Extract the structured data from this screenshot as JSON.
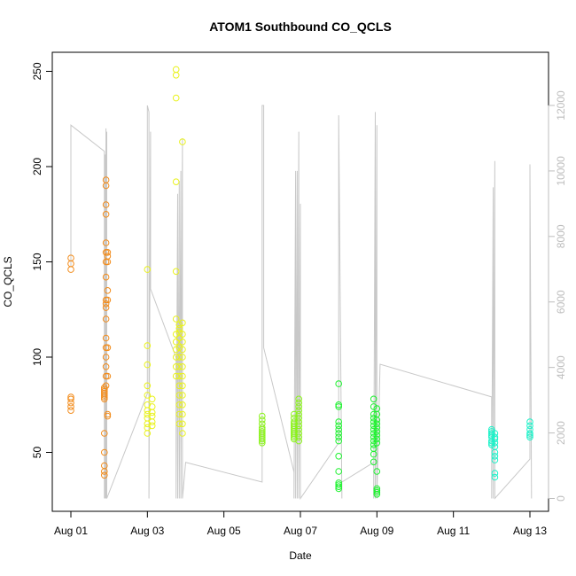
{
  "chart_data": {
    "type": "scatter",
    "title": "ATOM1 Southbound CO_QCLS",
    "xlabel": "Date",
    "ylabel": "CO_QCLS",
    "xlim": [
      "2016-08-01T00:00",
      "2016-08-13T00:00"
    ],
    "x_ticks": [
      "Aug 01",
      "Aug 03",
      "Aug 05",
      "Aug 07",
      "Aug 09",
      "Aug 11",
      "Aug 13"
    ],
    "ylim": [
      30,
      250
    ],
    "y_ticks": [
      50,
      100,
      150,
      200,
      250
    ],
    "secondary_ylim": [
      0,
      12000
    ],
    "secondary_y_ticks": [
      0,
      2000,
      4000,
      6000,
      8000,
      10000,
      12000
    ],
    "grid": false,
    "series": [
      {
        "type": "scatter",
        "color": "#f28c1c",
        "x": [
          "2016-08-01T00:00",
          "2016-08-01T00:00",
          "2016-08-01T00:00",
          "2016-08-01T00:00",
          "2016-08-01T00:00",
          "2016-08-01T00:00",
          "2016-08-01T00:00",
          "2016-08-01T00:00",
          "2016-08-01T21:00",
          "2016-08-01T21:00",
          "2016-08-01T21:00",
          "2016-08-01T21:00",
          "2016-08-01T21:00",
          "2016-08-01T21:00",
          "2016-08-01T21:00",
          "2016-08-01T21:00",
          "2016-08-01T21:00",
          "2016-08-01T21:00",
          "2016-08-01T21:00",
          "2016-08-01T21:00",
          "2016-08-01T22:00",
          "2016-08-01T22:00",
          "2016-08-01T22:00",
          "2016-08-01T22:00",
          "2016-08-01T22:00",
          "2016-08-01T22:00",
          "2016-08-01T22:00",
          "2016-08-01T22:00",
          "2016-08-01T22:00",
          "2016-08-01T22:00",
          "2016-08-01T22:00",
          "2016-08-01T22:00",
          "2016-08-01T22:00",
          "2016-08-01T22:00",
          "2016-08-01T22:00",
          "2016-08-01T22:00",
          "2016-08-01T22:00",
          "2016-08-01T22:00",
          "2016-08-01T23:00",
          "2016-08-01T23:00",
          "2016-08-01T23:00",
          "2016-08-01T23:00",
          "2016-08-01T23:00",
          "2016-08-01T23:00",
          "2016-08-01T23:00",
          "2016-08-01T23:00",
          "2016-08-01T23:00"
        ],
        "y": [
          152,
          149,
          146,
          79,
          78,
          76,
          74,
          72,
          84,
          83,
          82,
          81,
          80,
          79,
          78,
          60,
          50,
          43,
          40,
          38,
          193,
          190,
          180,
          175,
          160,
          155,
          150,
          142,
          130,
          128,
          126,
          120,
          110,
          105,
          100,
          95,
          90,
          85,
          155,
          153,
          150,
          135,
          130,
          105,
          90,
          70,
          69
        ]
      },
      {
        "type": "scatter",
        "color": "#e9f21c",
        "x": [
          "2016-08-03T00:00",
          "2016-08-03T00:00",
          "2016-08-03T00:00",
          "2016-08-03T00:00",
          "2016-08-03T00:00",
          "2016-08-03T00:00",
          "2016-08-03T00:00",
          "2016-08-03T00:00",
          "2016-08-03T00:00",
          "2016-08-03T00:00",
          "2016-08-03T00:00",
          "2016-08-03T00:00",
          "2016-08-03T03:00",
          "2016-08-03T03:00",
          "2016-08-03T03:00",
          "2016-08-03T03:00",
          "2016-08-03T03:00",
          "2016-08-03T03:00",
          "2016-08-03T18:00",
          "2016-08-03T18:00",
          "2016-08-03T18:00",
          "2016-08-03T18:00",
          "2016-08-03T18:00",
          "2016-08-03T18:00",
          "2016-08-03T18:00",
          "2016-08-03T18:00",
          "2016-08-03T18:00",
          "2016-08-03T18:00",
          "2016-08-03T18:00",
          "2016-08-03T18:00",
          "2016-08-03T20:00",
          "2016-08-03T20:00",
          "2016-08-03T20:00",
          "2016-08-03T20:00",
          "2016-08-03T20:00",
          "2016-08-03T20:00",
          "2016-08-03T20:00",
          "2016-08-03T20:00",
          "2016-08-03T20:00",
          "2016-08-03T20:00",
          "2016-08-03T20:00",
          "2016-08-03T20:00",
          "2016-08-03T20:00",
          "2016-08-03T22:00",
          "2016-08-03T22:00",
          "2016-08-03T22:00",
          "2016-08-03T22:00",
          "2016-08-03T22:00",
          "2016-08-03T22:00",
          "2016-08-03T22:00",
          "2016-08-03T22:00",
          "2016-08-03T22:00",
          "2016-08-03T22:00",
          "2016-08-03T22:00",
          "2016-08-03T22:00",
          "2016-08-03T22:00",
          "2016-08-03T22:00"
        ],
        "y": [
          146,
          106,
          96,
          85,
          80,
          75,
          72,
          70,
          68,
          65,
          63,
          60,
          78,
          74,
          71,
          69,
          66,
          64,
          251,
          248,
          236,
          192,
          145,
          120,
          112,
          108,
          104,
          100,
          95,
          90,
          117,
          115,
          113,
          110,
          105,
          100,
          95,
          90,
          85,
          80,
          75,
          70,
          65,
          213,
          118,
          112,
          108,
          104,
          100,
          95,
          90,
          85,
          80,
          75,
          70,
          65,
          60
        ]
      },
      {
        "type": "scatter",
        "color": "#8bf21c",
        "x": [
          "2016-08-06T00:00",
          "2016-08-06T00:00",
          "2016-08-06T00:00",
          "2016-08-06T00:00",
          "2016-08-06T00:00",
          "2016-08-06T00:00",
          "2016-08-06T00:00",
          "2016-08-06T00:00",
          "2016-08-06T00:00",
          "2016-08-06T00:00",
          "2016-08-06T00:00",
          "2016-08-06T00:00",
          "2016-08-06T20:00",
          "2016-08-06T20:00",
          "2016-08-06T20:00",
          "2016-08-06T20:00",
          "2016-08-06T20:00",
          "2016-08-06T20:00",
          "2016-08-06T20:00",
          "2016-08-06T20:00",
          "2016-08-06T20:00",
          "2016-08-06T20:00",
          "2016-08-06T20:00",
          "2016-08-06T20:00",
          "2016-08-06T23:00",
          "2016-08-06T23:00",
          "2016-08-06T23:00",
          "2016-08-06T23:00",
          "2016-08-06T23:00",
          "2016-08-06T23:00",
          "2016-08-06T23:00",
          "2016-08-06T23:00",
          "2016-08-06T23:00",
          "2016-08-06T23:00",
          "2016-08-06T23:00",
          "2016-08-06T23:00"
        ],
        "y": [
          69,
          67,
          65,
          63,
          62,
          61,
          60,
          59,
          58,
          57,
          56,
          55,
          70,
          68,
          66,
          65,
          64,
          63,
          62,
          61,
          60,
          59,
          58,
          57,
          78,
          76,
          74,
          72,
          70,
          68,
          66,
          64,
          62,
          60,
          58,
          56
        ]
      },
      {
        "type": "scatter",
        "color": "#1cf22e",
        "x": [
          "2016-08-08T00:00",
          "2016-08-08T00:00",
          "2016-08-08T00:00",
          "2016-08-08T00:00",
          "2016-08-08T00:00",
          "2016-08-08T00:00",
          "2016-08-08T00:00",
          "2016-08-08T00:00",
          "2016-08-08T00:00",
          "2016-08-08T00:00",
          "2016-08-08T00:00",
          "2016-08-08T00:00",
          "2016-08-08T00:00",
          "2016-08-08T00:00",
          "2016-08-08T00:00",
          "2016-08-08T22:00",
          "2016-08-08T22:00",
          "2016-08-08T22:00",
          "2016-08-08T22:00",
          "2016-08-08T22:00",
          "2016-08-08T22:00",
          "2016-08-08T22:00",
          "2016-08-08T22:00",
          "2016-08-08T22:00",
          "2016-08-08T22:00",
          "2016-08-08T22:00",
          "2016-08-08T22:00",
          "2016-08-08T22:00",
          "2016-08-08T22:00",
          "2016-08-09T00:00",
          "2016-08-09T00:00",
          "2016-08-09T00:00",
          "2016-08-09T00:00",
          "2016-08-09T00:00",
          "2016-08-09T00:00",
          "2016-08-09T00:00",
          "2016-08-09T00:00",
          "2016-08-09T00:00",
          "2016-08-09T00:00",
          "2016-08-09T00:00",
          "2016-08-09T00:00",
          "2016-08-09T00:00",
          "2016-08-09T00:00"
        ],
        "y": [
          86,
          75,
          74,
          66,
          64,
          62,
          60,
          58,
          56,
          48,
          40,
          34,
          33,
          32,
          31,
          78,
          74,
          70,
          68,
          66,
          64,
          62,
          60,
          58,
          56,
          54,
          52,
          49,
          45,
          73,
          70,
          67,
          65,
          63,
          61,
          59,
          57,
          55,
          40,
          31,
          30,
          29,
          28
        ]
      },
      {
        "type": "scatter",
        "color": "#1cf2c9",
        "x": [
          "2016-08-12T00:00",
          "2016-08-12T00:00",
          "2016-08-12T00:00",
          "2016-08-12T00:00",
          "2016-08-12T00:00",
          "2016-08-12T00:00",
          "2016-08-12T00:00",
          "2016-08-12T00:00",
          "2016-08-12T02:00",
          "2016-08-12T02:00",
          "2016-08-12T02:00",
          "2016-08-12T02:00",
          "2016-08-12T02:00",
          "2016-08-12T02:00",
          "2016-08-12T02:00",
          "2016-08-12T02:00",
          "2016-08-12T02:00",
          "2016-08-12T02:00",
          "2016-08-13T00:00",
          "2016-08-13T00:00",
          "2016-08-13T00:00",
          "2016-08-13T00:00",
          "2016-08-13T00:00",
          "2016-08-13T00:00"
        ],
        "y": [
          62,
          61,
          60,
          59,
          58,
          56,
          55,
          54,
          60,
          58,
          57,
          55,
          53,
          50,
          48,
          46,
          39,
          37,
          66,
          64,
          62,
          60,
          59,
          58
        ]
      },
      {
        "type": "line",
        "axis": "secondary",
        "color": "#c8c8c8",
        "x": [
          "2016-08-01T00:00",
          "2016-08-01T00:00",
          "2016-08-01T21:00",
          "2016-08-01T21:00",
          "2016-08-01T21:30",
          "2016-08-01T21:30",
          "2016-08-01T22:00",
          "2016-08-01T22:00",
          "2016-08-01T22:30",
          "2016-08-01T22:30",
          "2016-08-03T00:00",
          "2016-08-03T00:00",
          "2016-08-03T01:00",
          "2016-08-03T01:00",
          "2016-08-03T02:00",
          "2016-08-03T02:00",
          "2016-08-03T18:00",
          "2016-08-03T18:00",
          "2016-08-03T19:00",
          "2016-08-03T19:00",
          "2016-08-03T20:00",
          "2016-08-03T20:00",
          "2016-08-03T21:00",
          "2016-08-03T21:00",
          "2016-08-03T22:00",
          "2016-08-03T22:00",
          "2016-08-04T00:00",
          "2016-08-06T00:00",
          "2016-08-06T00:00",
          "2016-08-06T01:00",
          "2016-08-06T01:00",
          "2016-08-06T20:00",
          "2016-08-06T20:00",
          "2016-08-06T21:00",
          "2016-08-06T21:00",
          "2016-08-06T22:00",
          "2016-08-06T22:00",
          "2016-08-06T23:00",
          "2016-08-06T23:00",
          "2016-08-07T00:00",
          "2016-08-07T00:00",
          "2016-08-08T00:00",
          "2016-08-08T00:00",
          "2016-08-08T02:00",
          "2016-08-08T02:00",
          "2016-08-08T22:00",
          "2016-08-08T22:00",
          "2016-08-08T23:00",
          "2016-08-08T23:00",
          "2016-08-09T00:00",
          "2016-08-09T00:00",
          "2016-08-09T02:00",
          "2016-08-12T00:00",
          "2016-08-12T00:00",
          "2016-08-12T01:00",
          "2016-08-12T01:00",
          "2016-08-12T02:00",
          "2016-08-12T02:00",
          "2016-08-13T00:00",
          "2016-08-13T00:00",
          "2016-08-13T01:00"
        ],
        "y": [
          7100,
          11400,
          10600,
          0,
          10500,
          0,
          11300,
          0,
          11200,
          0,
          3200,
          12000,
          11800,
          0,
          11200,
          6400,
          4300,
          0,
          9300,
          0,
          9700,
          0,
          10000,
          0,
          11000,
          0,
          1100,
          500,
          12000,
          12000,
          4600,
          800,
          0,
          10000,
          0,
          10000,
          0,
          11200,
          0,
          9000,
          0,
          1700,
          11700,
          0,
          500,
          1100,
          0,
          11800,
          0,
          11400,
          0,
          4100,
          3100,
          0,
          9500,
          0,
          10300,
          0,
          1200,
          10200,
          0
        ]
      }
    ]
  }
}
